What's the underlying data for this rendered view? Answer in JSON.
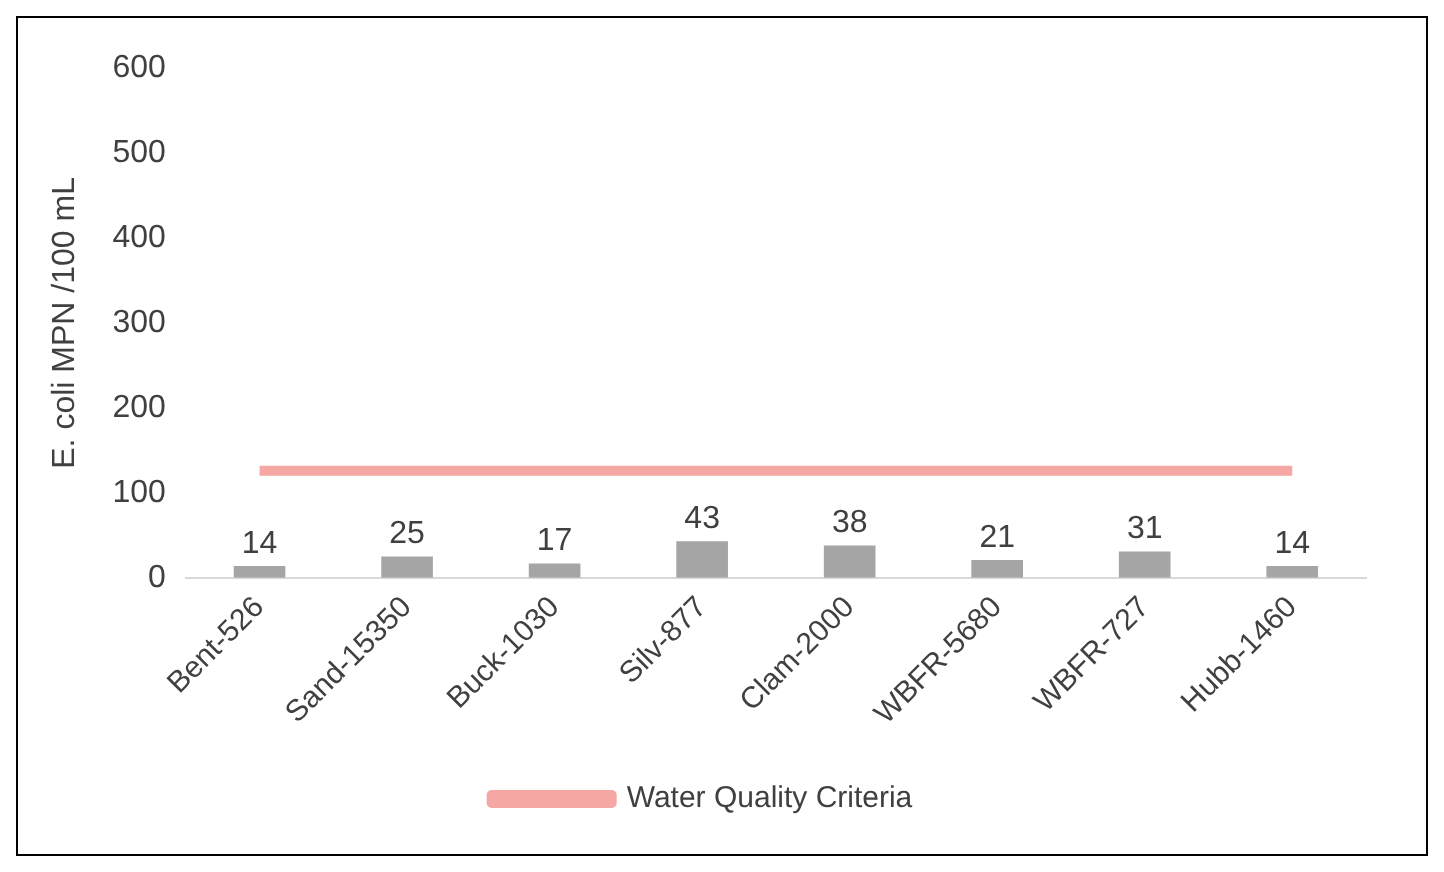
{
  "chart_data": {
    "type": "bar",
    "ylabel": "E. coli MPN /100 mL",
    "categories": [
      "Bent-526",
      "Sand-15350",
      "Buck-1030",
      "Silv-877",
      "Clam-2000",
      "WBFR-5680",
      "WBFR-727",
      "Hubb-1460"
    ],
    "series": [
      {
        "color": "#a5a5a5",
        "values": [
          14,
          25,
          17,
          43,
          38,
          21,
          31,
          14
        ],
        "value_labels": [
          "14",
          "25",
          "17",
          "43",
          "38",
          "21",
          "31",
          "14"
        ]
      },
      {
        "type": "line",
        "name": "Water Quality Criteria",
        "color": "#f4a7a3",
        "values": [
          126,
          126,
          126,
          126,
          126,
          126,
          126,
          126
        ],
        "marker": "none"
      }
    ],
    "ylim": [
      0,
      600
    ],
    "yticks": [
      0,
      100,
      200,
      300,
      400,
      500,
      600
    ],
    "grid": false,
    "legend": "bottom"
  }
}
